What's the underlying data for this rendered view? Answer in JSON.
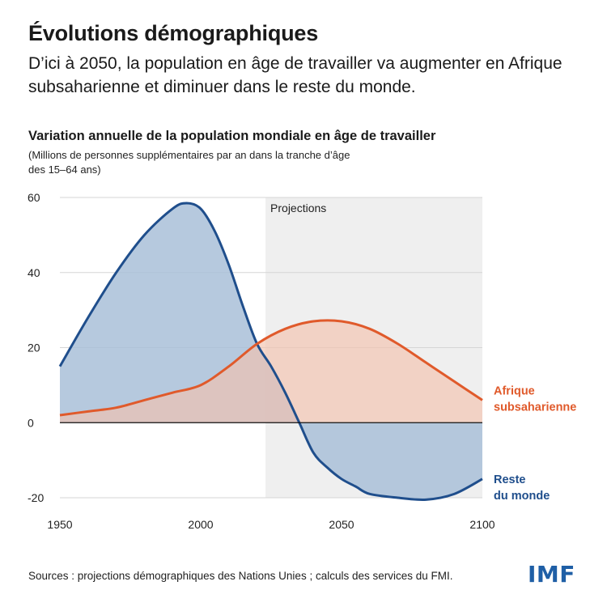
{
  "headline": "Évolutions démographiques",
  "subhead": "D’ici à 2050, la population en âge de travailler va augmenter en Afrique subsaharienne et diminuer dans le reste du monde.",
  "source": "Sources : projections démographiques des Nations Unies ; calculs des services du FMI.",
  "logo_text": "IMF",
  "chart_data": {
    "type": "area",
    "title": "Variation annuelle de la population mondiale en âge de travailler",
    "subtitle": "(Millions de personnes supplémentaires par an dans la tranche d’âge des 15–64 ans)",
    "xlim": [
      1950,
      2100
    ],
    "ylim": [
      -20,
      60
    ],
    "x_ticks": [
      1950,
      2000,
      2050,
      2100
    ],
    "y_ticks": [
      -20,
      0,
      20,
      40,
      60
    ],
    "shaded_region": {
      "label": "Projections",
      "x_start": 2023,
      "x_end": 2100
    },
    "series": [
      {
        "name": "Reste du monde",
        "label_lines": [
          "Reste",
          "du monde"
        ],
        "color": "#1f4e8c",
        "fill": "#a9bfd8",
        "points": [
          [
            1950,
            15
          ],
          [
            1960,
            28
          ],
          [
            1970,
            40
          ],
          [
            1980,
            50
          ],
          [
            1990,
            57
          ],
          [
            1995,
            58.5
          ],
          [
            2000,
            57
          ],
          [
            2005,
            51
          ],
          [
            2010,
            42
          ],
          [
            2015,
            31
          ],
          [
            2020,
            21
          ],
          [
            2025,
            15
          ],
          [
            2030,
            8
          ],
          [
            2035,
            0
          ],
          [
            2040,
            -8
          ],
          [
            2045,
            -12
          ],
          [
            2050,
            -15
          ],
          [
            2055,
            -17
          ],
          [
            2060,
            -19
          ],
          [
            2070,
            -20
          ],
          [
            2080,
            -20.5
          ],
          [
            2090,
            -19
          ],
          [
            2100,
            -15
          ]
        ]
      },
      {
        "name": "Afrique subsaharienne",
        "label_lines": [
          "Afrique",
          "subsaharienne"
        ],
        "color": "#e05a2b",
        "fill": "#f2c2ad",
        "points": [
          [
            1950,
            2
          ],
          [
            1960,
            3
          ],
          [
            1970,
            4
          ],
          [
            1980,
            6
          ],
          [
            1990,
            8
          ],
          [
            2000,
            10
          ],
          [
            2010,
            15
          ],
          [
            2020,
            21
          ],
          [
            2030,
            25
          ],
          [
            2040,
            27
          ],
          [
            2050,
            27
          ],
          [
            2060,
            25
          ],
          [
            2070,
            21
          ],
          [
            2080,
            16
          ],
          [
            2090,
            11
          ],
          [
            2100,
            6
          ]
        ]
      }
    ]
  }
}
